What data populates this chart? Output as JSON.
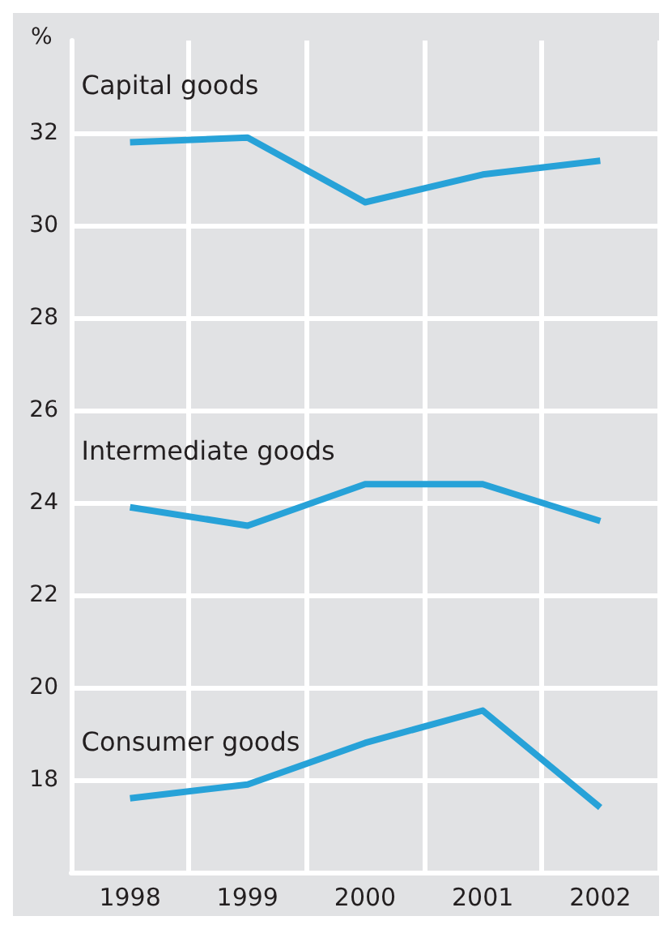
{
  "chart_data": {
    "type": "line",
    "ylabel": "%",
    "categories": [
      "1998",
      "1999",
      "2000",
      "2001",
      "2002"
    ],
    "series": [
      {
        "name": "Capital goods",
        "color": "#27a2d8",
        "values": [
          31.8,
          31.9,
          30.5,
          31.1,
          31.4
        ]
      },
      {
        "name": "Intermediate goods",
        "color": "#27a2d8",
        "values": [
          23.9,
          23.5,
          24.4,
          24.4,
          23.6
        ]
      },
      {
        "name": "Consumer goods",
        "color": "#27a2d8",
        "values": [
          17.6,
          17.9,
          18.8,
          19.5,
          17.4
        ]
      }
    ],
    "ylim": [
      16,
      34
    ],
    "yticks": [
      18,
      20,
      22,
      24,
      26,
      28,
      30,
      32
    ],
    "grid": true,
    "legend": false,
    "marker": "none",
    "line_style": "solid"
  }
}
